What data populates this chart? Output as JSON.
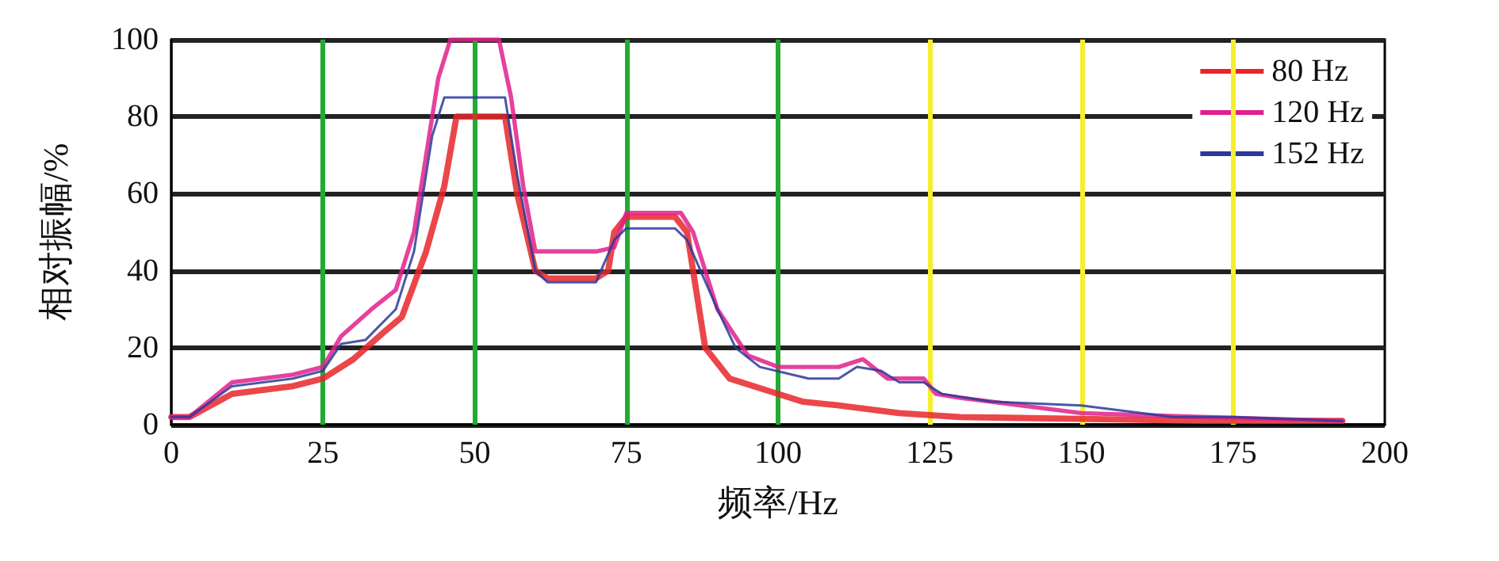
{
  "chart_data": {
    "type": "line",
    "xlabel": "频率/Hz",
    "ylabel": "相对振幅/%",
    "xlim": [
      0,
      200
    ],
    "xticks": [
      0,
      25,
      50,
      75,
      100,
      125,
      150,
      175,
      200
    ],
    "ylim": [
      0,
      100
    ],
    "yticks": [
      0,
      20,
      40,
      60,
      80,
      100
    ],
    "grid": "y",
    "legend": "top right",
    "marker": "none",
    "line_style": "solid",
    "ref_lines": [
      {
        "axis": "x",
        "value": 25,
        "color": "#22aa33"
      },
      {
        "axis": "x",
        "value": 50,
        "color": "#22aa33"
      },
      {
        "axis": "x",
        "value": 75,
        "color": "#22aa33"
      },
      {
        "axis": "x",
        "value": 100,
        "color": "#22aa33"
      },
      {
        "axis": "x",
        "value": 125,
        "color": "#f5ee30"
      },
      {
        "axis": "x",
        "value": 150,
        "color": "#f5ee30"
      },
      {
        "axis": "x",
        "value": 175,
        "color": "#f5ee30"
      }
    ],
    "series": [
      {
        "name": "80 Hz",
        "color": "#e8262a",
        "x": [
          0,
          3,
          10,
          20,
          25,
          30,
          35,
          38,
          42,
          45,
          47,
          55,
          57,
          60,
          62,
          70,
          72,
          73,
          75,
          83,
          85,
          88,
          92,
          100,
          104,
          110,
          120,
          130,
          150,
          170,
          193
        ],
        "values": [
          2,
          2,
          8,
          10,
          12,
          17,
          24,
          28,
          45,
          62,
          80,
          80,
          60,
          40,
          38,
          38,
          40,
          50,
          54,
          54,
          50,
          20,
          12,
          8,
          6,
          5,
          3,
          2,
          1.5,
          1,
          1
        ]
      },
      {
        "name": "120 Hz",
        "color": "#e0208c",
        "x": [
          0,
          3,
          10,
          20,
          25,
          28,
          33,
          37,
          40,
          42,
          44,
          46,
          54,
          56,
          58,
          60,
          70,
          73,
          75,
          84,
          86,
          90,
          95,
          100,
          105,
          110,
          114,
          118,
          124,
          126,
          130,
          150,
          170,
          193
        ],
        "values": [
          2,
          2,
          11,
          13,
          15,
          23,
          30,
          35,
          50,
          70,
          90,
          100,
          100,
          85,
          62,
          45,
          45,
          46,
          55,
          55,
          50,
          30,
          18,
          15,
          15,
          15,
          17,
          12,
          12,
          8,
          7,
          3,
          2,
          1
        ]
      },
      {
        "name": "152 Hz",
        "color": "#2a3a9a",
        "x": [
          0,
          3,
          10,
          20,
          25,
          28,
          32,
          37,
          40,
          43,
          45,
          55,
          57,
          60,
          62,
          70,
          73,
          75,
          83,
          85,
          90,
          93,
          97,
          105,
          110,
          113,
          117,
          120,
          124,
          127,
          135,
          150,
          165,
          175,
          193
        ],
        "values": [
          2,
          2,
          10,
          12,
          14,
          21,
          22,
          30,
          45,
          75,
          85,
          85,
          65,
          40,
          37,
          37,
          48,
          51,
          51,
          48,
          30,
          20,
          15,
          12,
          12,
          15,
          14,
          11,
          11,
          8,
          6,
          5,
          2,
          2,
          1
        ]
      }
    ]
  }
}
